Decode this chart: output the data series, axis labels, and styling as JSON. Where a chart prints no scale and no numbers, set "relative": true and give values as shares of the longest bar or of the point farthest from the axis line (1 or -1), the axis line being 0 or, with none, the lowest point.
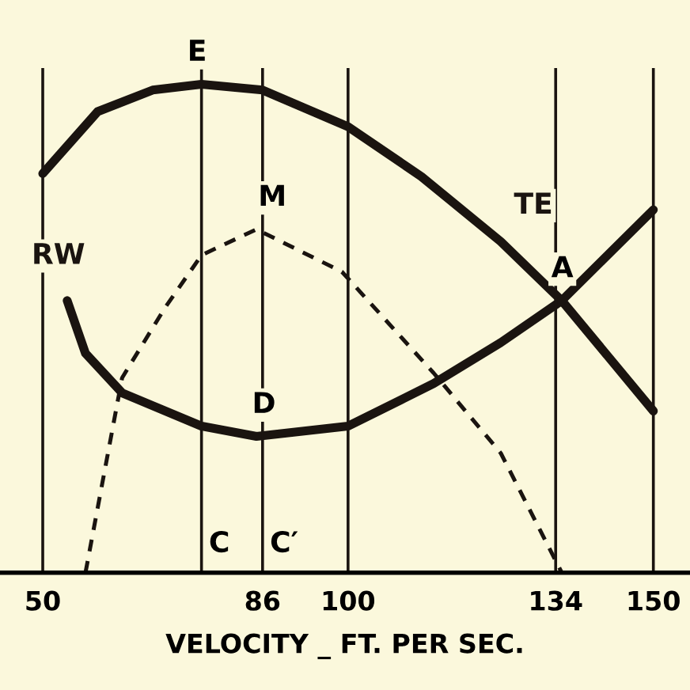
{
  "chart_data": {
    "type": "line",
    "relative": true,
    "xlabel": "VELOCITY _ FT. PER SEC.",
    "xlim": [
      43,
      156
    ],
    "xticks": [
      50,
      86,
      100,
      134,
      150
    ],
    "series": [
      {
        "name": "TE",
        "color": "#1a1410",
        "line_style": "solid",
        "x": [
          50,
          59,
          68,
          76,
          86,
          100,
          112,
          125,
          135,
          150
        ],
        "values": [
          0.817,
          0.944,
          0.988,
          1.0,
          0.988,
          0.913,
          0.811,
          0.678,
          0.557,
          0.331
        ]
      },
      {
        "name": "RW",
        "color": "#1a1410",
        "line_style": "solid",
        "x": [
          54,
          57,
          63,
          76,
          85,
          100,
          114,
          125,
          135,
          150
        ],
        "values": [
          0.557,
          0.449,
          0.368,
          0.3,
          0.279,
          0.3,
          0.387,
          0.471,
          0.557,
          0.743
        ]
      },
      {
        "color": "#1a1410",
        "line_style": "dashed",
        "x": [
          57,
          63,
          70,
          76,
          85,
          99,
          114,
          125,
          135
        ],
        "values": [
          0,
          0.399,
          0.542,
          0.65,
          0.703,
          0.616,
          0.409,
          0.245,
          0
        ]
      }
    ],
    "ref_lines": [
      {
        "axis": "x",
        "value": 50,
        "label": null
      },
      {
        "axis": "x",
        "value": 76,
        "label": "C"
      },
      {
        "axis": "x",
        "value": 86,
        "label": "C′"
      },
      {
        "axis": "x",
        "value": 100,
        "label": null
      },
      {
        "axis": "x",
        "value": 134,
        "label": null
      },
      {
        "axis": "x",
        "value": 150,
        "label": null
      }
    ],
    "annotations": [
      {
        "text": "E",
        "x": 76,
        "y": 1.0
      },
      {
        "text": "M",
        "x": 86,
        "y": 0.703
      },
      {
        "text": "A",
        "x": 134,
        "y": 0.557
      },
      {
        "text": "D",
        "x": 85,
        "y": 0.279
      }
    ],
    "grid": false,
    "legend": false,
    "marker": "none"
  }
}
